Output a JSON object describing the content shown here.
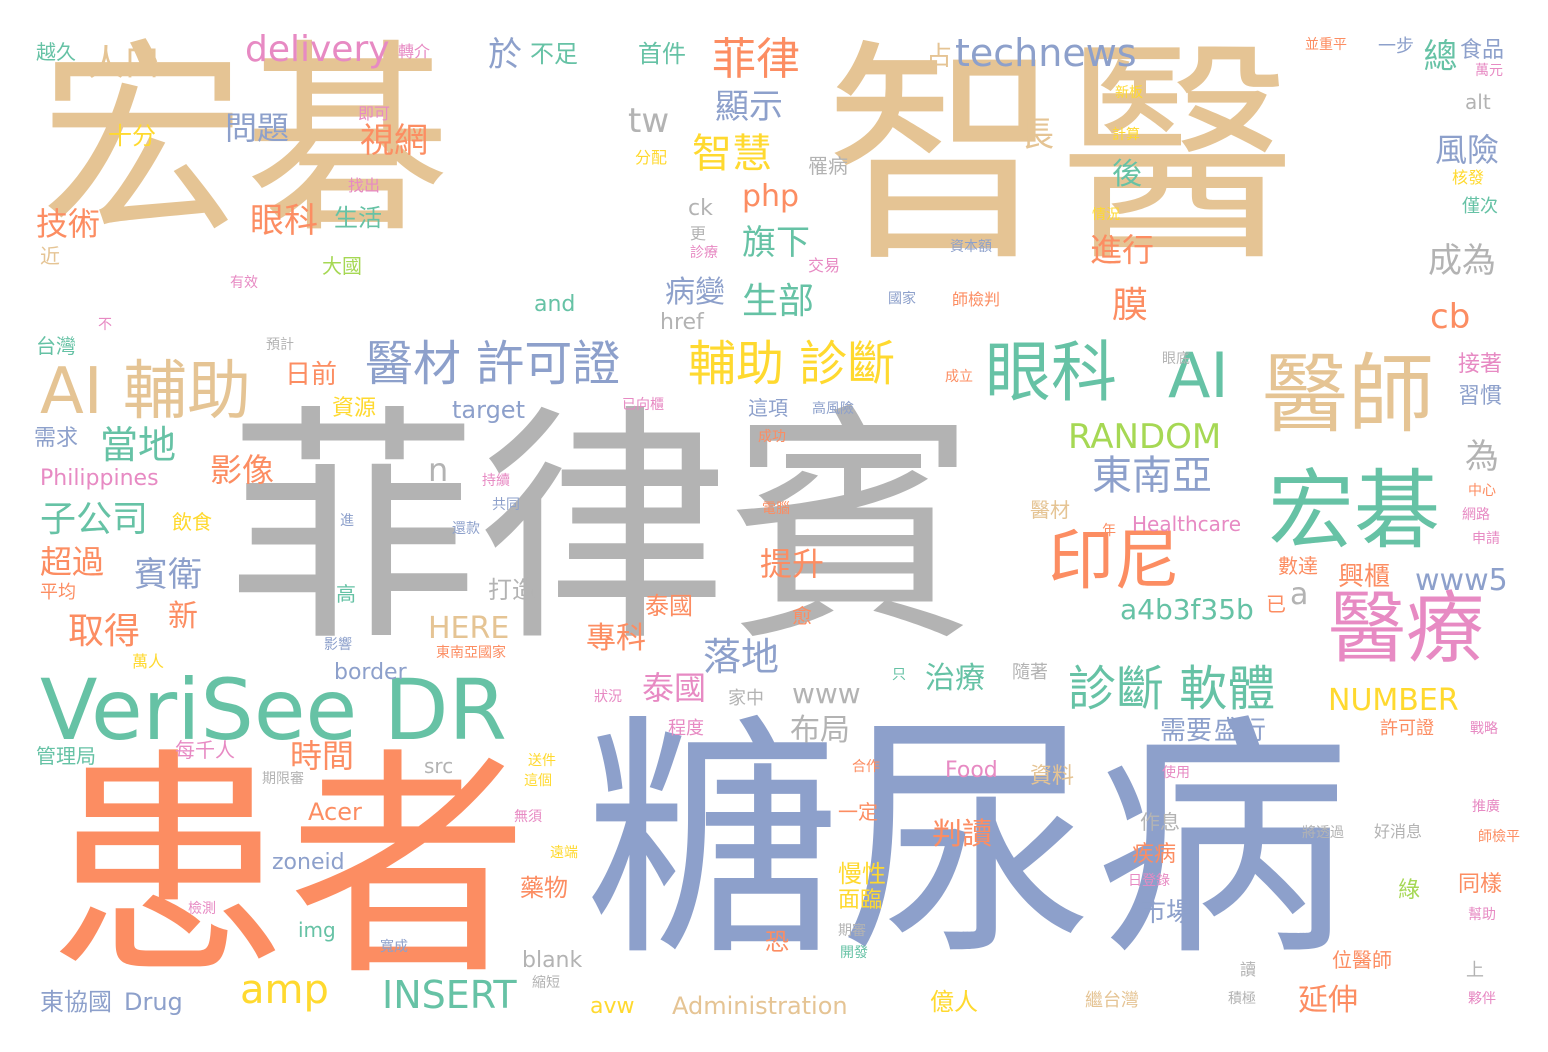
{
  "colors": {
    "tan": "#e5c494",
    "gray": "#b3b3b3",
    "orange": "#fc8d62",
    "blue": "#8da0cb",
    "green": "#66c2a5",
    "pink": "#e78ac3",
    "lime": "#a6d854",
    "yellow": "#ffd92f"
  },
  "words": [
    {
      "text": "宏碁",
      "color": "tan"
    },
    {
      "text": "智醫",
      "color": "tan"
    },
    {
      "text": "菲律賓",
      "color": "gray"
    },
    {
      "text": "糖尿病",
      "color": "blue"
    },
    {
      "text": "患者",
      "color": "orange"
    },
    {
      "text": "VeriSee DR",
      "color": "green"
    },
    {
      "text": "AI 輔助",
      "color": "tan"
    },
    {
      "text": "醫材 許可證",
      "color": "blue"
    },
    {
      "text": "輔助 診斷",
      "color": "yellow"
    },
    {
      "text": "眼科",
      "color": "green"
    },
    {
      "text": "AI",
      "color": "green"
    },
    {
      "text": "醫師",
      "color": "tan"
    },
    {
      "text": "宏碁",
      "color": "green"
    },
    {
      "text": "印尼",
      "color": "orange"
    },
    {
      "text": "醫療",
      "color": "pink"
    },
    {
      "text": "診斷 軟體",
      "color": "green"
    },
    {
      "text": "technews",
      "color": "blue"
    },
    {
      "text": "delivery",
      "color": "pink"
    },
    {
      "text": "菲律",
      "color": "orange"
    },
    {
      "text": "人口",
      "color": "tan"
    },
    {
      "text": "於",
      "color": "blue"
    },
    {
      "text": "不足",
      "color": "green"
    },
    {
      "text": "首件",
      "color": "green"
    },
    {
      "text": "總",
      "color": "green"
    },
    {
      "text": "食品",
      "color": "blue"
    },
    {
      "text": "越久",
      "color": "green"
    },
    {
      "text": "轉介",
      "color": "pink"
    },
    {
      "text": "占",
      "color": "tan"
    },
    {
      "text": "並重平",
      "color": "orange"
    },
    {
      "text": "一步",
      "color": "blue"
    },
    {
      "text": "萬元",
      "color": "pink"
    },
    {
      "text": "即可",
      "color": "pink"
    },
    {
      "text": "新板",
      "color": "yellow"
    },
    {
      "text": "alt",
      "color": "gray"
    },
    {
      "text": "十分",
      "color": "yellow"
    },
    {
      "text": "問題",
      "color": "blue"
    },
    {
      "text": "視網",
      "color": "orange"
    },
    {
      "text": "顯示",
      "color": "blue"
    },
    {
      "text": "tw",
      "color": "gray"
    },
    {
      "text": "智慧",
      "color": "yellow"
    },
    {
      "text": "長",
      "color": "tan"
    },
    {
      "text": "計算",
      "color": "yellow"
    },
    {
      "text": "風險",
      "color": "blue"
    },
    {
      "text": "後",
      "color": "green"
    },
    {
      "text": "分配",
      "color": "yellow"
    },
    {
      "text": "罹病",
      "color": "gray"
    },
    {
      "text": "核發",
      "color": "yellow"
    },
    {
      "text": "找出",
      "color": "pink"
    },
    {
      "text": "生活",
      "color": "green"
    },
    {
      "text": "php",
      "color": "orange"
    },
    {
      "text": "ck",
      "color": "gray"
    },
    {
      "text": "情況",
      "color": "yellow"
    },
    {
      "text": "僅次",
      "color": "green"
    },
    {
      "text": "技術",
      "color": "orange"
    },
    {
      "text": "眼科",
      "color": "orange"
    },
    {
      "text": "旗下",
      "color": "green"
    },
    {
      "text": "更",
      "color": "gray"
    },
    {
      "text": "診療",
      "color": "pink"
    },
    {
      "text": "資本額",
      "color": "blue"
    },
    {
      "text": "進行",
      "color": "orange"
    },
    {
      "text": "成為",
      "color": "gray"
    },
    {
      "text": "近",
      "color": "tan"
    },
    {
      "text": "大國",
      "color": "lime"
    },
    {
      "text": "交易",
      "color": "pink"
    },
    {
      "text": "有效",
      "color": "pink"
    },
    {
      "text": "病變",
      "color": "blue"
    },
    {
      "text": "生部",
      "color": "green"
    },
    {
      "text": "國家",
      "color": "blue"
    },
    {
      "text": "師檢判",
      "color": "orange"
    },
    {
      "text": "and",
      "color": "green"
    },
    {
      "text": "膜",
      "color": "orange"
    },
    {
      "text": "cb",
      "color": "orange"
    },
    {
      "text": "不",
      "color": "pink"
    },
    {
      "text": "href",
      "color": "gray"
    },
    {
      "text": "台灣",
      "color": "green"
    },
    {
      "text": "預計",
      "color": "gray"
    },
    {
      "text": "日前",
      "color": "orange"
    },
    {
      "text": "眼底",
      "color": "gray"
    },
    {
      "text": "成立",
      "color": "orange"
    },
    {
      "text": "接著",
      "color": "pink"
    },
    {
      "text": "習慣",
      "color": "blue"
    },
    {
      "text": "資源",
      "color": "yellow"
    },
    {
      "text": "target",
      "color": "blue"
    },
    {
      "text": "已向櫃",
      "color": "pink"
    },
    {
      "text": "這項",
      "color": "blue"
    },
    {
      "text": "高風險",
      "color": "blue"
    },
    {
      "text": "需求",
      "color": "blue"
    },
    {
      "text": "當地",
      "color": "green"
    },
    {
      "text": "成功",
      "color": "orange"
    },
    {
      "text": "RANDOM",
      "color": "lime"
    },
    {
      "text": "為",
      "color": "gray"
    },
    {
      "text": "影像",
      "color": "orange"
    },
    {
      "text": "n",
      "color": "gray"
    },
    {
      "text": "東南亞",
      "color": "blue"
    },
    {
      "text": "Philippines",
      "color": "pink"
    },
    {
      "text": "持續",
      "color": "pink"
    },
    {
      "text": "中心",
      "color": "orange"
    },
    {
      "text": "子公司",
      "color": "green"
    },
    {
      "text": "共同",
      "color": "blue"
    },
    {
      "text": "電腦",
      "color": "orange"
    },
    {
      "text": "醫材",
      "color": "tan"
    },
    {
      "text": "網路",
      "color": "pink"
    },
    {
      "text": "飲食",
      "color": "yellow"
    },
    {
      "text": "進",
      "color": "blue"
    },
    {
      "text": "還款",
      "color": "blue"
    },
    {
      "text": "年",
      "color": "orange"
    },
    {
      "text": "Healthcare",
      "color": "pink"
    },
    {
      "text": "申請",
      "color": "pink"
    },
    {
      "text": "超過",
      "color": "orange"
    },
    {
      "text": "賓衛",
      "color": "blue"
    },
    {
      "text": "提升",
      "color": "orange"
    },
    {
      "text": "數達",
      "color": "orange"
    },
    {
      "text": "興櫃",
      "color": "orange"
    },
    {
      "text": "www5",
      "color": "blue"
    },
    {
      "text": "平均",
      "color": "orange"
    },
    {
      "text": "高",
      "color": "green"
    },
    {
      "text": "泰國",
      "color": "orange"
    },
    {
      "text": "打造",
      "color": "gray"
    },
    {
      "text": "已",
      "color": "orange"
    },
    {
      "text": "a",
      "color": "gray"
    },
    {
      "text": "a4b3f35b",
      "color": "green"
    },
    {
      "text": "取得",
      "color": "orange"
    },
    {
      "text": "新",
      "color": "orange"
    },
    {
      "text": "HERE",
      "color": "tan"
    },
    {
      "text": "專科",
      "color": "orange"
    },
    {
      "text": "落地",
      "color": "blue"
    },
    {
      "text": "愈",
      "color": "orange"
    },
    {
      "text": "萬人",
      "color": "yellow"
    },
    {
      "text": "影響",
      "color": "blue"
    },
    {
      "text": "東南亞國家",
      "color": "orange"
    },
    {
      "text": "border",
      "color": "blue"
    },
    {
      "text": "治療",
      "color": "green"
    },
    {
      "text": "只",
      "color": "green"
    },
    {
      "text": "隨著",
      "color": "gray"
    },
    {
      "text": "NUMBER",
      "color": "yellow"
    },
    {
      "text": "泰國",
      "color": "pink"
    },
    {
      "text": "www",
      "color": "gray"
    },
    {
      "text": "狀況",
      "color": "pink"
    },
    {
      "text": "家中",
      "color": "gray"
    },
    {
      "text": "許可證",
      "color": "orange"
    },
    {
      "text": "戰略",
      "color": "pink"
    },
    {
      "text": "管理局",
      "color": "green"
    },
    {
      "text": "每千人",
      "color": "pink"
    },
    {
      "text": "布局",
      "color": "gray"
    },
    {
      "text": "需要",
      "color": "blue"
    },
    {
      "text": "盛行",
      "color": "blue"
    },
    {
      "text": "程度",
      "color": "pink"
    },
    {
      "text": "時間",
      "color": "orange"
    },
    {
      "text": "src",
      "color": "gray"
    },
    {
      "text": "送件",
      "color": "yellow"
    },
    {
      "text": "期限審",
      "color": "gray"
    },
    {
      "text": "合作",
      "color": "orange"
    },
    {
      "text": "Food",
      "color": "pink"
    },
    {
      "text": "資料",
      "color": "tan"
    },
    {
      "text": "使用",
      "color": "pink"
    },
    {
      "text": "這個",
      "color": "yellow"
    },
    {
      "text": "Acer",
      "color": "orange"
    },
    {
      "text": "無須",
      "color": "pink"
    },
    {
      "text": "一定",
      "color": "orange"
    },
    {
      "text": "作息",
      "color": "gray"
    },
    {
      "text": "推廣",
      "color": "pink"
    },
    {
      "text": "判讀",
      "color": "orange"
    },
    {
      "text": "將透過",
      "color": "gray"
    },
    {
      "text": "好消息",
      "color": "gray"
    },
    {
      "text": "師檢平",
      "color": "orange"
    },
    {
      "text": "zoneid",
      "color": "blue"
    },
    {
      "text": "遠端",
      "color": "yellow"
    },
    {
      "text": "慢性",
      "color": "yellow"
    },
    {
      "text": "疾病",
      "color": "orange"
    },
    {
      "text": "日登錄",
      "color": "pink"
    },
    {
      "text": "同樣",
      "color": "orange"
    },
    {
      "text": "藥物",
      "color": "orange"
    },
    {
      "text": "面臨",
      "color": "yellow"
    },
    {
      "text": "綠",
      "color": "lime"
    },
    {
      "text": "檢測",
      "color": "pink"
    },
    {
      "text": "img",
      "color": "green"
    },
    {
      "text": "寬成",
      "color": "blue"
    },
    {
      "text": "恐",
      "color": "orange"
    },
    {
      "text": "期審",
      "color": "gray"
    },
    {
      "text": "幫助",
      "color": "pink"
    },
    {
      "text": "blank",
      "color": "gray"
    },
    {
      "text": "開發",
      "color": "green"
    },
    {
      "text": "位醫師",
      "color": "orange"
    },
    {
      "text": "讀",
      "color": "gray"
    },
    {
      "text": "上",
      "color": "gray"
    },
    {
      "text": "東協國",
      "color": "blue"
    },
    {
      "text": "Drug",
      "color": "blue"
    },
    {
      "text": "縮短",
      "color": "gray"
    },
    {
      "text": "amp",
      "color": "yellow"
    },
    {
      "text": "INSERT",
      "color": "green"
    },
    {
      "text": "avw",
      "color": "yellow"
    },
    {
      "text": "Administration",
      "color": "tan"
    },
    {
      "text": "億人",
      "color": "yellow"
    },
    {
      "text": "延伸",
      "color": "orange"
    },
    {
      "text": "繼台灣",
      "color": "tan"
    },
    {
      "text": "積極",
      "color": "gray"
    },
    {
      "text": "夥伴",
      "color": "pink"
    },
    {
      "text": "市場",
      "color": "blue"
    }
  ]
}
